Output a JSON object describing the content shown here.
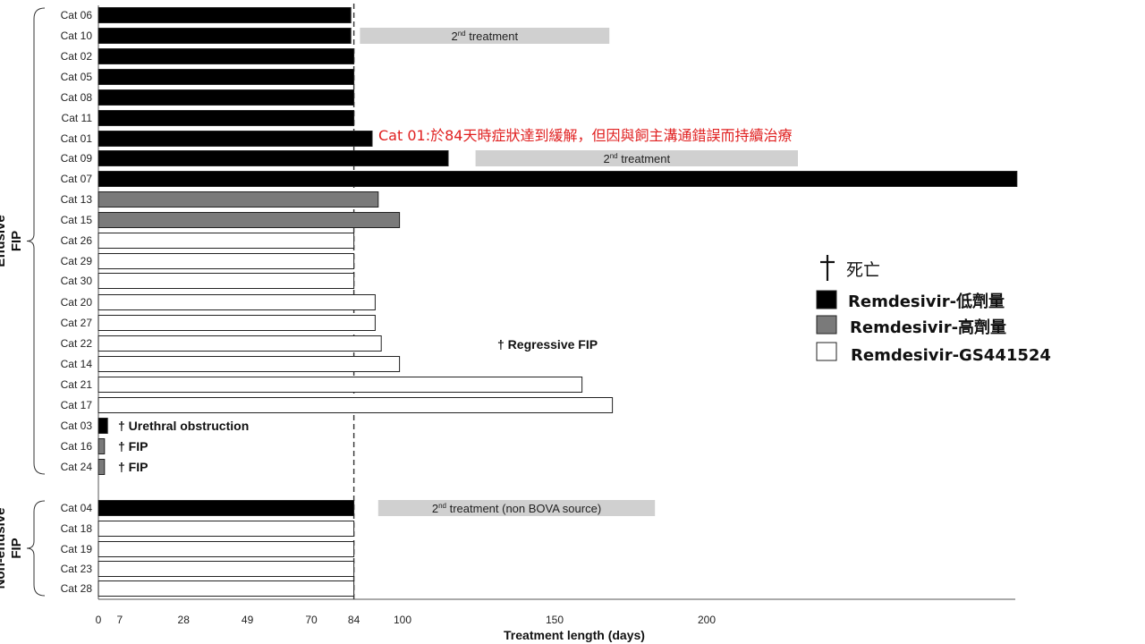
{
  "chart_data": {
    "type": "bar",
    "orientation": "horizontal",
    "title": "",
    "xlabel": "Treatment length (days)",
    "ylabel": "",
    "xlim": [
      0,
      300
    ],
    "xticks": [
      0,
      7,
      28,
      49,
      70,
      84,
      100,
      150,
      200
    ],
    "reference_line": 84,
    "grid": false,
    "legend_position": "right",
    "groups": [
      {
        "name": "Effusive FIP",
        "label_line1": "Effusive",
        "label_line2": "FIP",
        "first": 0,
        "last": 22
      },
      {
        "name": "Non-effusive FIP",
        "label_line1": "Non-effusive",
        "label_line2": "FIP",
        "first": 23,
        "last": 27
      }
    ],
    "treatment_types": {
      "low": {
        "name": "Remdesivir-低劑量",
        "color": "#000000"
      },
      "high": {
        "name": "Remdesivir-高劑量",
        "color": "#7a7a7a"
      },
      "gs": {
        "name": "Remdesivir-GS441524",
        "color": "#ffffff"
      }
    },
    "bars": [
      {
        "cat": "Cat 06",
        "value": 83,
        "type": "low"
      },
      {
        "cat": "Cat 10",
        "value": 83,
        "type": "low"
      },
      {
        "cat": "Cat 02",
        "value": 84,
        "type": "low"
      },
      {
        "cat": "Cat 05",
        "value": 84,
        "type": "low"
      },
      {
        "cat": "Cat 08",
        "value": 84,
        "type": "low"
      },
      {
        "cat": "Cat 11",
        "value": 84,
        "type": "low"
      },
      {
        "cat": "Cat 01",
        "value": 90,
        "type": "low"
      },
      {
        "cat": "Cat 09",
        "value": 115,
        "type": "low"
      },
      {
        "cat": "Cat 07",
        "value": 302,
        "type": "low"
      },
      {
        "cat": "Cat 13",
        "value": 92,
        "type": "high"
      },
      {
        "cat": "Cat 15",
        "value": 99,
        "type": "high"
      },
      {
        "cat": "Cat 26",
        "value": 84,
        "type": "gs"
      },
      {
        "cat": "Cat 29",
        "value": 84,
        "type": "gs"
      },
      {
        "cat": "Cat 30",
        "value": 84,
        "type": "gs"
      },
      {
        "cat": "Cat 20",
        "value": 91,
        "type": "gs"
      },
      {
        "cat": "Cat 27",
        "value": 91,
        "type": "gs"
      },
      {
        "cat": "Cat 22",
        "value": 93,
        "type": "gs"
      },
      {
        "cat": "Cat 14",
        "value": 99,
        "type": "gs"
      },
      {
        "cat": "Cat 21",
        "value": 159,
        "type": "gs"
      },
      {
        "cat": "Cat 17",
        "value": 169,
        "type": "gs"
      },
      {
        "cat": "Cat 03",
        "value": 3,
        "type": "low"
      },
      {
        "cat": "Cat 16",
        "value": 2,
        "type": "high"
      },
      {
        "cat": "Cat 24",
        "value": 2,
        "type": "high"
      },
      {
        "cat": "Cat 04",
        "value": 84,
        "type": "low"
      },
      {
        "cat": "Cat 18",
        "value": 84,
        "type": "gs"
      },
      {
        "cat": "Cat 19",
        "value": 84,
        "type": "gs"
      },
      {
        "cat": "Cat 23",
        "value": 84,
        "type": "gs"
      },
      {
        "cat": "Cat 28",
        "value": 84,
        "type": "gs"
      }
    ],
    "second_treatments": [
      {
        "row": 1,
        "start": 86,
        "end": 168,
        "label": "2nd treatment",
        "sup": "nd",
        "rest": " treatment"
      },
      {
        "row": 7,
        "start": 124,
        "end": 230,
        "label": "2nd treatment",
        "sup": "nd",
        "rest": " treatment"
      },
      {
        "row": 23,
        "start": 92,
        "end": 183,
        "label": "2nd treatment (non BOVA source)",
        "sup": "nd",
        "rest": " treatment (non BOVA source)"
      }
    ],
    "death_annotations": [
      {
        "row": 20,
        "text": "† Urethral obstruction"
      },
      {
        "row": 21,
        "text": "† FIP"
      },
      {
        "row": 22,
        "text": "† FIP"
      }
    ],
    "regressive_note": "† Regressive FIP",
    "remission_note": "Cat 01:於84天時症狀達到緩解，但因與飼主溝通錯誤而持續治療"
  },
  "legend": {
    "dagger_symbol": "†",
    "dagger_label": "死亡"
  }
}
